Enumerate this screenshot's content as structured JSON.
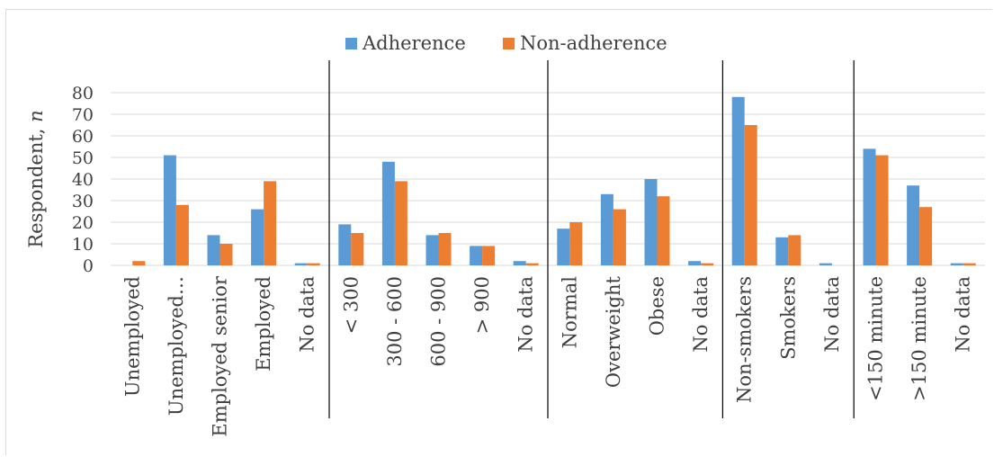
{
  "chart_data": {
    "type": "bar",
    "title": "",
    "ylabel": "Respondent, n",
    "ylabel_parts": [
      "Respondent, ",
      "n"
    ],
    "ylim": [
      0,
      80
    ],
    "yticks": [
      0,
      10,
      20,
      30,
      40,
      50,
      60,
      70,
      80
    ],
    "grid": true,
    "legend_position": "top-center",
    "categories": [
      "Unemployed",
      "Unemployed…",
      "Employed senior",
      "Employed",
      "No data",
      "< 300",
      "300 - 600",
      "600 - 900",
      "> 900",
      "No data",
      "Normal",
      "Overweight",
      "Obese",
      "No data",
      "Non-smokers",
      "Smokers",
      "No data",
      "<150 minute",
      ">150 minute",
      "No data"
    ],
    "group_boundaries_after_index": [
      4,
      9,
      13,
      16
    ],
    "series": [
      {
        "name": "Adherence",
        "color": "#5b9bd5",
        "values": [
          0,
          51,
          14,
          26,
          1,
          19,
          48,
          14,
          9,
          2,
          17,
          33,
          40,
          2,
          78,
          13,
          1,
          54,
          37,
          1
        ]
      },
      {
        "name": "Non-adherence",
        "color": "#ed7d31",
        "values": [
          2,
          28,
          10,
          39,
          1,
          15,
          39,
          15,
          9,
          1,
          20,
          26,
          32,
          1,
          65,
          14,
          0,
          51,
          27,
          1
        ]
      }
    ]
  }
}
